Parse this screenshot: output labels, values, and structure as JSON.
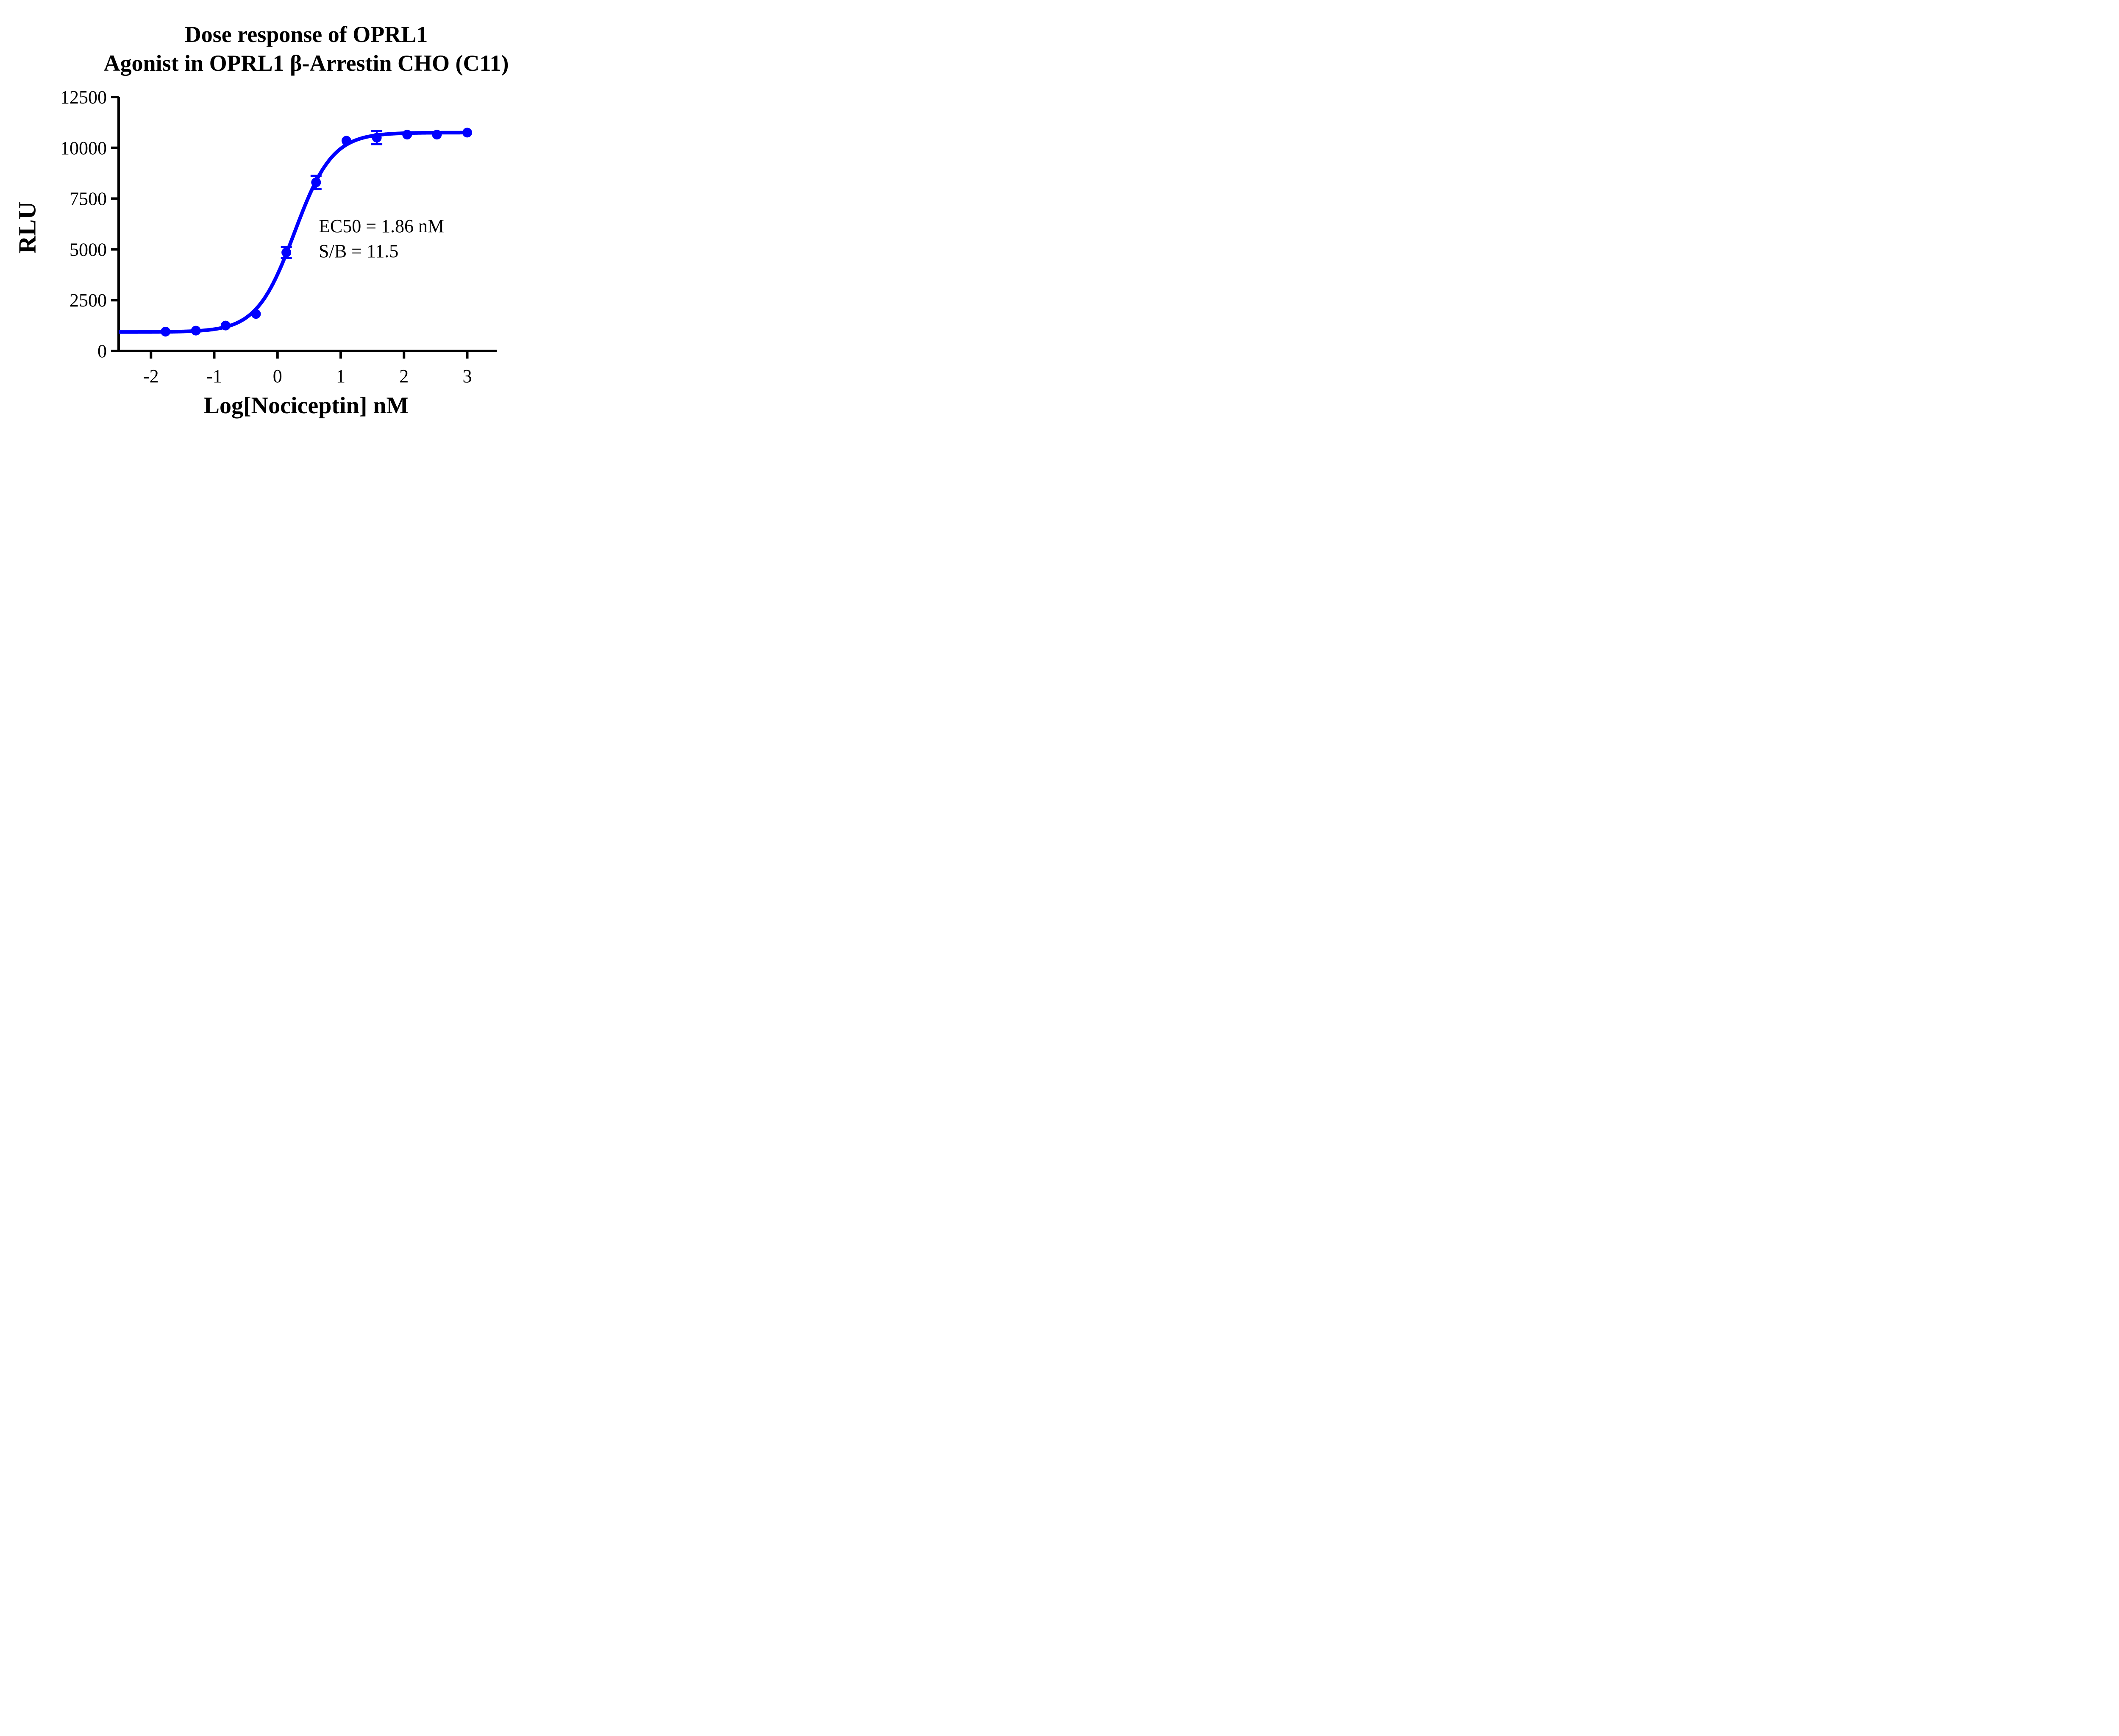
{
  "title": {
    "line1": "Dose response of OPRL1",
    "line2": "Agonist in OPRL1 β-Arrestin CHO (C11)"
  },
  "axes": {
    "y": {
      "label": "RLU"
    },
    "x": {
      "label": "Log[Nociceptin] nM"
    }
  },
  "annotation": {
    "line1": "EC50 = 1.86 nM",
    "line2": "S/B = 11.5"
  },
  "colors": {
    "series": "#0000FF",
    "axis": "#000000",
    "text": "#000000",
    "background": "#FFFFFF"
  },
  "chart_data": {
    "type": "scatter",
    "title": "Dose response of OPRL1 Agonist in OPRL1 β-Arrestin CHO (C11)",
    "xlabel": "Log[Nociceptin] nM",
    "ylabel": "RLU",
    "xlim": [
      -2.51,
      3.47
    ],
    "ylim": [
      0,
      12500
    ],
    "x_ticks": [
      -2,
      -1,
      0,
      1,
      2,
      3
    ],
    "y_ticks": [
      0,
      2500,
      5000,
      7500,
      10000,
      12500
    ],
    "grid": false,
    "legend_position": "none",
    "series": [
      {
        "name": "Nociceptin",
        "color": "#0000FF",
        "x_log_nM": [
          -1.77,
          -1.29,
          -0.82,
          -0.34,
          0.14,
          0.61,
          1.09,
          1.57,
          2.05,
          2.52,
          3.0
        ],
        "y_RLU": [
          950,
          1000,
          1250,
          1820,
          4850,
          8300,
          10350,
          10500,
          10650,
          10650,
          10750
        ],
        "y_err_RLU": [
          null,
          null,
          null,
          null,
          270,
          320,
          null,
          320,
          null,
          null,
          null
        ]
      }
    ],
    "fit": {
      "model": "4PL sigmoidal dose-response",
      "bottom": 930,
      "top": 10750,
      "logEC50": 0.27,
      "hill": 1.45,
      "curve_x_range": [
        -2.51,
        3.0
      ]
    },
    "annotations": [
      "EC50 = 1.86 nM",
      "S/B = 11.5"
    ]
  }
}
